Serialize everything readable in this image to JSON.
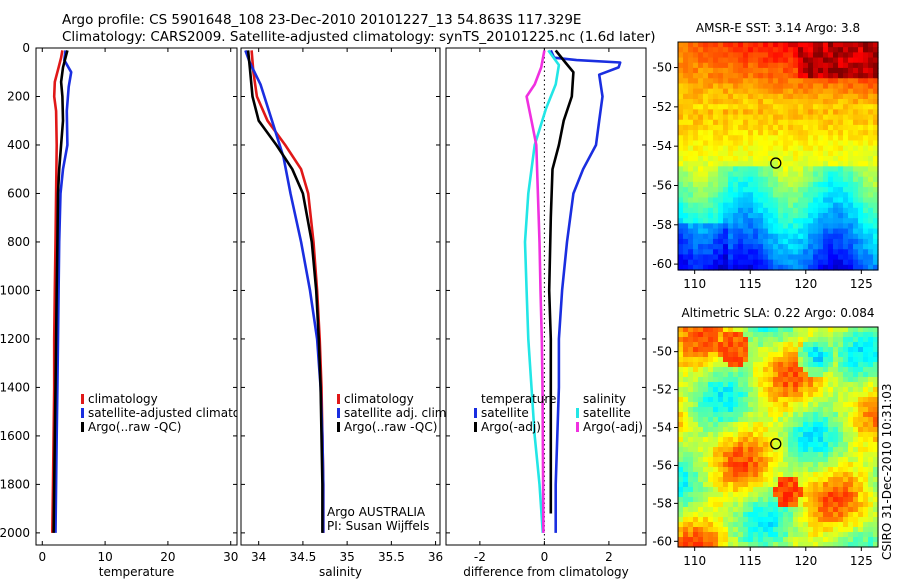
{
  "header": {
    "line1": "Argo profile: CS 5901648_108 23-Dec-2010 20101227_13 54.863S 117.329E",
    "line2": "Climatology: CARS2009. Satellite-adjusted climatology: synTS_20101225.nc (1.6d later)"
  },
  "side_caption": "CSIRO 31-Dec-2010 10:31:03",
  "colors": {
    "climatology": "#e01818",
    "satellite": "#1a2ee0",
    "argo": "#000000",
    "sat_salinity": "#22e6e6",
    "argo_salinity": "#f030e0"
  },
  "chart_data": [
    {
      "id": "temperature",
      "type": "line",
      "xlabel": "temperature",
      "ylabel": "",
      "xlim": [
        -1,
        31
      ],
      "ylim": [
        2050,
        0
      ],
      "xticks": [
        0,
        10,
        20,
        30
      ],
      "yticks": [
        0,
        200,
        400,
        600,
        800,
        1000,
        1200,
        1400,
        1600,
        1800,
        2000
      ],
      "legend": [
        "climatology",
        "satellite-adjusted climatology",
        "Argo(..raw -QC)"
      ],
      "series": [
        {
          "name": "climatology",
          "color": "climatology",
          "points": [
            [
              3.2,
              10
            ],
            [
              3.0,
              40
            ],
            [
              2.6,
              80
            ],
            [
              2.0,
              140
            ],
            [
              1.9,
              200
            ],
            [
              2.2,
              260
            ],
            [
              2.3,
              400
            ],
            [
              2.2,
              600
            ],
            [
              2.1,
              800
            ],
            [
              2.0,
              1000
            ],
            [
              1.9,
              1200
            ],
            [
              1.9,
              1400
            ],
            [
              1.8,
              1600
            ],
            [
              1.7,
              1800
            ],
            [
              1.6,
              2000
            ]
          ]
        },
        {
          "name": "satellite-adjusted climatology",
          "color": "satellite",
          "points": [
            [
              3.7,
              10
            ],
            [
              3.5,
              50
            ],
            [
              4.6,
              100
            ],
            [
              4.2,
              160
            ],
            [
              3.9,
              260
            ],
            [
              4.0,
              400
            ],
            [
              3.3,
              500
            ],
            [
              2.9,
              600
            ],
            [
              2.7,
              800
            ],
            [
              2.6,
              1000
            ],
            [
              2.5,
              1200
            ],
            [
              2.4,
              1400
            ],
            [
              2.3,
              1600
            ],
            [
              2.2,
              1800
            ],
            [
              2.1,
              2000
            ]
          ]
        },
        {
          "name": "Argo(..raw -QC)",
          "color": "argo",
          "points": [
            [
              4.0,
              10
            ],
            [
              3.7,
              40
            ],
            [
              3.3,
              80
            ],
            [
              3.0,
              140
            ],
            [
              3.2,
              200
            ],
            [
              3.3,
              300
            ],
            [
              3.0,
              400
            ],
            [
              2.7,
              500
            ],
            [
              2.5,
              600
            ],
            [
              2.4,
              800
            ],
            [
              2.3,
              1000
            ],
            [
              2.2,
              1200
            ],
            [
              2.1,
              1400
            ],
            [
              2.0,
              1600
            ],
            [
              1.9,
              1800
            ],
            [
              1.8,
              2000
            ]
          ]
        }
      ]
    },
    {
      "id": "salinity",
      "type": "line",
      "xlabel": "salinity",
      "ylabel": "",
      "xlim": [
        33.8,
        36.05
      ],
      "ylim": [
        2050,
        0
      ],
      "xticks": [
        34,
        34.5,
        35,
        35.5,
        36
      ],
      "yticks": [
        0,
        200,
        400,
        600,
        800,
        1000,
        1200,
        1400,
        1600,
        1800,
        2000
      ],
      "legend": [
        "climatology",
        "satellite adj. clim.",
        "Argo(..raw -QC)"
      ],
      "annotation": [
        "Argo AUSTRALIA",
        "PI: Susan Wijffels"
      ],
      "series": [
        {
          "name": "climatology",
          "color": "climatology",
          "points": [
            [
              33.92,
              10
            ],
            [
              33.94,
              100
            ],
            [
              33.98,
              200
            ],
            [
              34.1,
              300
            ],
            [
              34.3,
              400
            ],
            [
              34.48,
              500
            ],
            [
              34.56,
              600
            ],
            [
              34.62,
              800
            ],
            [
              34.66,
              1000
            ],
            [
              34.69,
              1200
            ],
            [
              34.71,
              1400
            ],
            [
              34.72,
              1600
            ],
            [
              34.73,
              1800
            ],
            [
              34.73,
              2000
            ]
          ]
        },
        {
          "name": "satellite adj. clim.",
          "color": "satellite",
          "points": [
            [
              33.85,
              10
            ],
            [
              33.9,
              60
            ],
            [
              34.02,
              150
            ],
            [
              34.15,
              300
            ],
            [
              34.28,
              450
            ],
            [
              34.36,
              600
            ],
            [
              34.48,
              800
            ],
            [
              34.58,
              1000
            ],
            [
              34.66,
              1200
            ],
            [
              34.7,
              1400
            ],
            [
              34.72,
              1600
            ],
            [
              34.73,
              1800
            ],
            [
              34.73,
              2000
            ]
          ]
        },
        {
          "name": "Argo(..raw -QC)",
          "color": "argo",
          "points": [
            [
              33.88,
              10
            ],
            [
              33.9,
              80
            ],
            [
              33.93,
              200
            ],
            [
              34.0,
              300
            ],
            [
              34.2,
              400
            ],
            [
              34.38,
              500
            ],
            [
              34.5,
              600
            ],
            [
              34.6,
              800
            ],
            [
              34.65,
              1000
            ],
            [
              34.68,
              1200
            ],
            [
              34.7,
              1400
            ],
            [
              34.71,
              1600
            ],
            [
              34.72,
              1800
            ],
            [
              34.72,
              2000
            ]
          ]
        }
      ]
    },
    {
      "id": "difference",
      "type": "line",
      "xlabel": "difference from climatology",
      "ylabel": "",
      "xlim": [
        -3.05,
        3.15
      ],
      "ylim": [
        2050,
        0
      ],
      "xticks": [
        -2,
        0,
        2
      ],
      "yticks": [
        0,
        200,
        400,
        600,
        800,
        1000,
        1200,
        1400,
        1600,
        1800,
        2000
      ],
      "legend_left": [
        "temperature",
        "satellite",
        "Argo(-adj)"
      ],
      "legend_right": [
        "salinity",
        "satellite",
        "Argo(-adj)"
      ],
      "series": [
        {
          "name": "temperature satellite",
          "color": "satellite",
          "points": [
            [
              0.2,
              10
            ],
            [
              0.3,
              40
            ],
            [
              1.0,
              50
            ],
            [
              2.35,
              60
            ],
            [
              2.3,
              80
            ],
            [
              1.7,
              110
            ],
            [
              1.8,
              200
            ],
            [
              1.7,
              300
            ],
            [
              1.6,
              400
            ],
            [
              1.2,
              500
            ],
            [
              0.9,
              600
            ],
            [
              0.7,
              800
            ],
            [
              0.55,
              1000
            ],
            [
              0.45,
              1200
            ],
            [
              0.45,
              1400
            ],
            [
              0.4,
              1600
            ],
            [
              0.35,
              1800
            ],
            [
              0.35,
              2000
            ]
          ]
        },
        {
          "name": "temperature Argo(-adj)",
          "color": "argo",
          "points": [
            [
              0.35,
              10
            ],
            [
              0.65,
              60
            ],
            [
              0.9,
              100
            ],
            [
              0.85,
              200
            ],
            [
              0.6,
              300
            ],
            [
              0.45,
              400
            ],
            [
              0.25,
              500
            ],
            [
              0.2,
              700
            ],
            [
              0.15,
              1000
            ],
            [
              0.2,
              1200
            ],
            [
              0.2,
              1400
            ],
            [
              0.2,
              1600
            ],
            [
              0.2,
              1800
            ],
            [
              0.2,
              1920
            ]
          ]
        },
        {
          "name": "salinity satellite",
          "color": "sat_salinity",
          "points": [
            [
              0.12,
              10
            ],
            [
              0.45,
              70
            ],
            [
              0.35,
              150
            ],
            [
              0.05,
              250
            ],
            [
              -0.3,
              400
            ],
            [
              -0.5,
              600
            ],
            [
              -0.6,
              800
            ],
            [
              -0.55,
              1000
            ],
            [
              -0.5,
              1200
            ],
            [
              -0.4,
              1400
            ],
            [
              -0.3,
              1600
            ],
            [
              -0.15,
              1800
            ],
            [
              -0.05,
              2000
            ]
          ]
        },
        {
          "name": "salinity Argo(-adj)",
          "color": "argo_salinity",
          "points": [
            [
              0.0,
              10
            ],
            [
              -0.1,
              80
            ],
            [
              -0.3,
              150
            ],
            [
              -0.55,
              200
            ],
            [
              -0.4,
              300
            ],
            [
              -0.25,
              400
            ],
            [
              -0.2,
              600
            ],
            [
              -0.15,
              800
            ],
            [
              -0.12,
              1000
            ],
            [
              -0.08,
              1200
            ],
            [
              -0.06,
              1400
            ],
            [
              -0.05,
              1600
            ],
            [
              -0.04,
              1800
            ],
            [
              -0.03,
              2000
            ]
          ]
        }
      ]
    },
    {
      "id": "sst_map",
      "type": "heatmap",
      "title": "AMSR-E SST: 3.14 Argo: 3.8",
      "xlim": [
        108.5,
        126.5
      ],
      "ylim": [
        -60.3,
        -48.7
      ],
      "xticks": [
        110,
        115,
        120,
        125
      ],
      "yticks": [
        -50,
        -52,
        -54,
        -56,
        -58,
        -60
      ],
      "marker": {
        "lon": 117.3,
        "lat": -54.86
      }
    },
    {
      "id": "sla_map",
      "type": "heatmap",
      "title": "Altimetric SLA: 0.22 Argo: 0.084",
      "xlim": [
        108.5,
        126.5
      ],
      "ylim": [
        -60.3,
        -48.7
      ],
      "xticks": [
        110,
        115,
        120,
        125
      ],
      "yticks": [
        -50,
        -52,
        -54,
        -56,
        -58,
        -60
      ],
      "marker": {
        "lon": 117.3,
        "lat": -54.86
      }
    }
  ]
}
